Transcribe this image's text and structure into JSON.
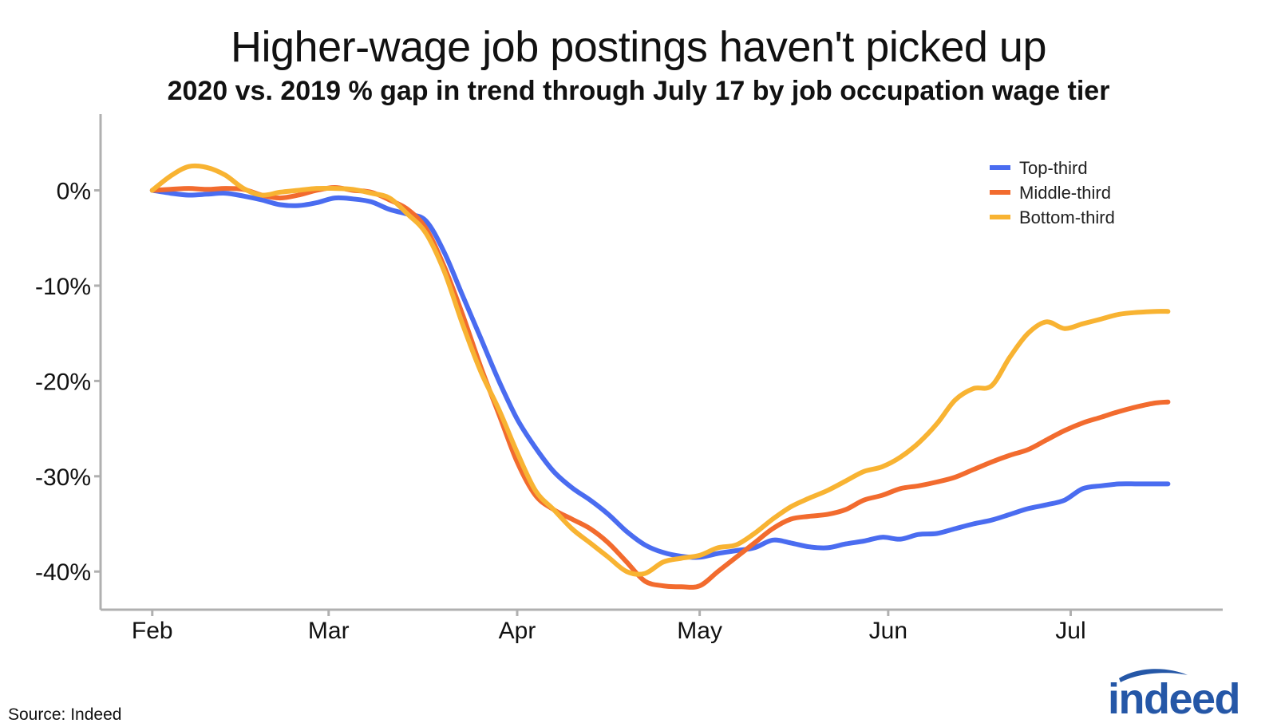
{
  "chart_data": {
    "type": "line",
    "title": "Higher-wage job postings haven't picked up",
    "subtitle": "2020 vs. 2019 % gap in trend through July 17 by job occupation wage tier",
    "xlabel": "",
    "ylabel": "",
    "x_ticks": [
      "Feb",
      "Mar",
      "Apr",
      "May",
      "Jun",
      "Jul"
    ],
    "x_tick_days": [
      0,
      29,
      60,
      90,
      121,
      151
    ],
    "y_ticks": [
      0,
      -10,
      -20,
      -30,
      -40
    ],
    "y_tick_labels": [
      "0%",
      "-10%",
      "-20%",
      "-30%",
      "-40%"
    ],
    "xlim": [
      -8.5,
      176
    ],
    "ylim": [
      -44,
      8
    ],
    "legend_position": "top-right",
    "series": [
      {
        "name": "Top-third",
        "color": "#4A6CF0",
        "x": [
          0,
          3,
          6,
          9,
          12,
          15,
          18,
          21,
          24,
          27,
          30,
          33,
          36,
          39,
          42,
          45,
          48,
          51,
          54,
          57,
          60,
          63,
          66,
          69,
          72,
          75,
          78,
          81,
          84,
          87,
          90,
          93,
          96,
          99,
          102,
          105,
          108,
          111,
          114,
          117,
          120,
          123,
          126,
          129,
          132,
          135,
          138,
          141,
          144,
          147,
          150,
          153,
          156,
          159,
          162,
          165,
          167
        ],
        "values": [
          0,
          -0.3,
          -0.5,
          -0.4,
          -0.3,
          -0.6,
          -1.0,
          -1.5,
          -1.6,
          -1.3,
          -0.8,
          -0.9,
          -1.2,
          -2.0,
          -2.5,
          -3.2,
          -6.5,
          -11.0,
          -15.5,
          -20.0,
          -24.0,
          -27.0,
          -29.5,
          -31.2,
          -32.5,
          -34.0,
          -35.8,
          -37.2,
          -38.0,
          -38.4,
          -38.5,
          -38.1,
          -37.8,
          -37.5,
          -36.7,
          -37.0,
          -37.4,
          -37.5,
          -37.1,
          -36.8,
          -36.4,
          -36.6,
          -36.1,
          -36.0,
          -35.5,
          -35.0,
          -34.6,
          -34.0,
          -33.4,
          -33.0,
          -32.5,
          -31.3,
          -31.0,
          -30.8,
          -30.8,
          -30.8,
          -30.8
        ]
      },
      {
        "name": "Middle-third",
        "color": "#F26B2E",
        "x": [
          0,
          3,
          6,
          9,
          12,
          15,
          18,
          21,
          24,
          27,
          30,
          33,
          36,
          39,
          42,
          45,
          48,
          51,
          54,
          57,
          60,
          63,
          66,
          69,
          72,
          75,
          78,
          81,
          84,
          87,
          90,
          93,
          96,
          99,
          102,
          105,
          108,
          111,
          114,
          117,
          120,
          123,
          126,
          129,
          132,
          135,
          138,
          141,
          144,
          147,
          150,
          153,
          156,
          159,
          162,
          165,
          167
        ],
        "values": [
          0,
          0.1,
          0.2,
          0.1,
          0.2,
          0.1,
          -0.5,
          -0.8,
          -0.5,
          0.0,
          0.3,
          0.0,
          -0.2,
          -1.0,
          -2.0,
          -4.0,
          -8.0,
          -13.0,
          -18.5,
          -23.5,
          -28.5,
          -32.0,
          -33.5,
          -34.5,
          -35.5,
          -37.0,
          -39.0,
          -41.0,
          -41.5,
          -41.6,
          -41.5,
          -40.0,
          -38.5,
          -37.0,
          -35.5,
          -34.5,
          -34.2,
          -34.0,
          -33.5,
          -32.5,
          -32.0,
          -31.3,
          -31.0,
          -30.6,
          -30.1,
          -29.3,
          -28.5,
          -27.8,
          -27.2,
          -26.2,
          -25.2,
          -24.4,
          -23.8,
          -23.2,
          -22.7,
          -22.3,
          -22.2
        ]
      },
      {
        "name": "Bottom-third",
        "color": "#F8B332",
        "x": [
          0,
          3,
          6,
          9,
          12,
          15,
          18,
          21,
          24,
          27,
          30,
          33,
          36,
          39,
          42,
          45,
          48,
          51,
          54,
          57,
          60,
          63,
          66,
          69,
          72,
          75,
          78,
          81,
          84,
          87,
          90,
          93,
          96,
          99,
          102,
          105,
          108,
          111,
          114,
          117,
          120,
          123,
          126,
          129,
          132,
          135,
          138,
          141,
          144,
          147,
          150,
          153,
          156,
          159,
          162,
          165,
          167
        ],
        "values": [
          0,
          1.5,
          2.5,
          2.4,
          1.6,
          0.2,
          -0.5,
          -0.2,
          0.0,
          0.2,
          0.2,
          0.1,
          -0.3,
          -0.8,
          -2.5,
          -4.5,
          -8.5,
          -14.0,
          -19.0,
          -23.0,
          -27.5,
          -31.5,
          -33.5,
          -35.5,
          -37.0,
          -38.5,
          -40.0,
          -40.2,
          -39.0,
          -38.6,
          -38.3,
          -37.5,
          -37.2,
          -36.0,
          -34.5,
          -33.2,
          -32.3,
          -31.5,
          -30.5,
          -29.5,
          -29.0,
          -28.0,
          -26.5,
          -24.5,
          -22.0,
          -20.8,
          -20.5,
          -17.5,
          -15.0,
          -13.8,
          -14.5,
          -14.0,
          -13.5,
          -13.0,
          -12.8,
          -12.7,
          -12.7
        ]
      }
    ]
  },
  "footer": {
    "source": "Source: Indeed",
    "brand": "indeed"
  },
  "colors": {
    "axis": "#b0b0b0",
    "text": "#111111",
    "brand": "#2557A7"
  }
}
